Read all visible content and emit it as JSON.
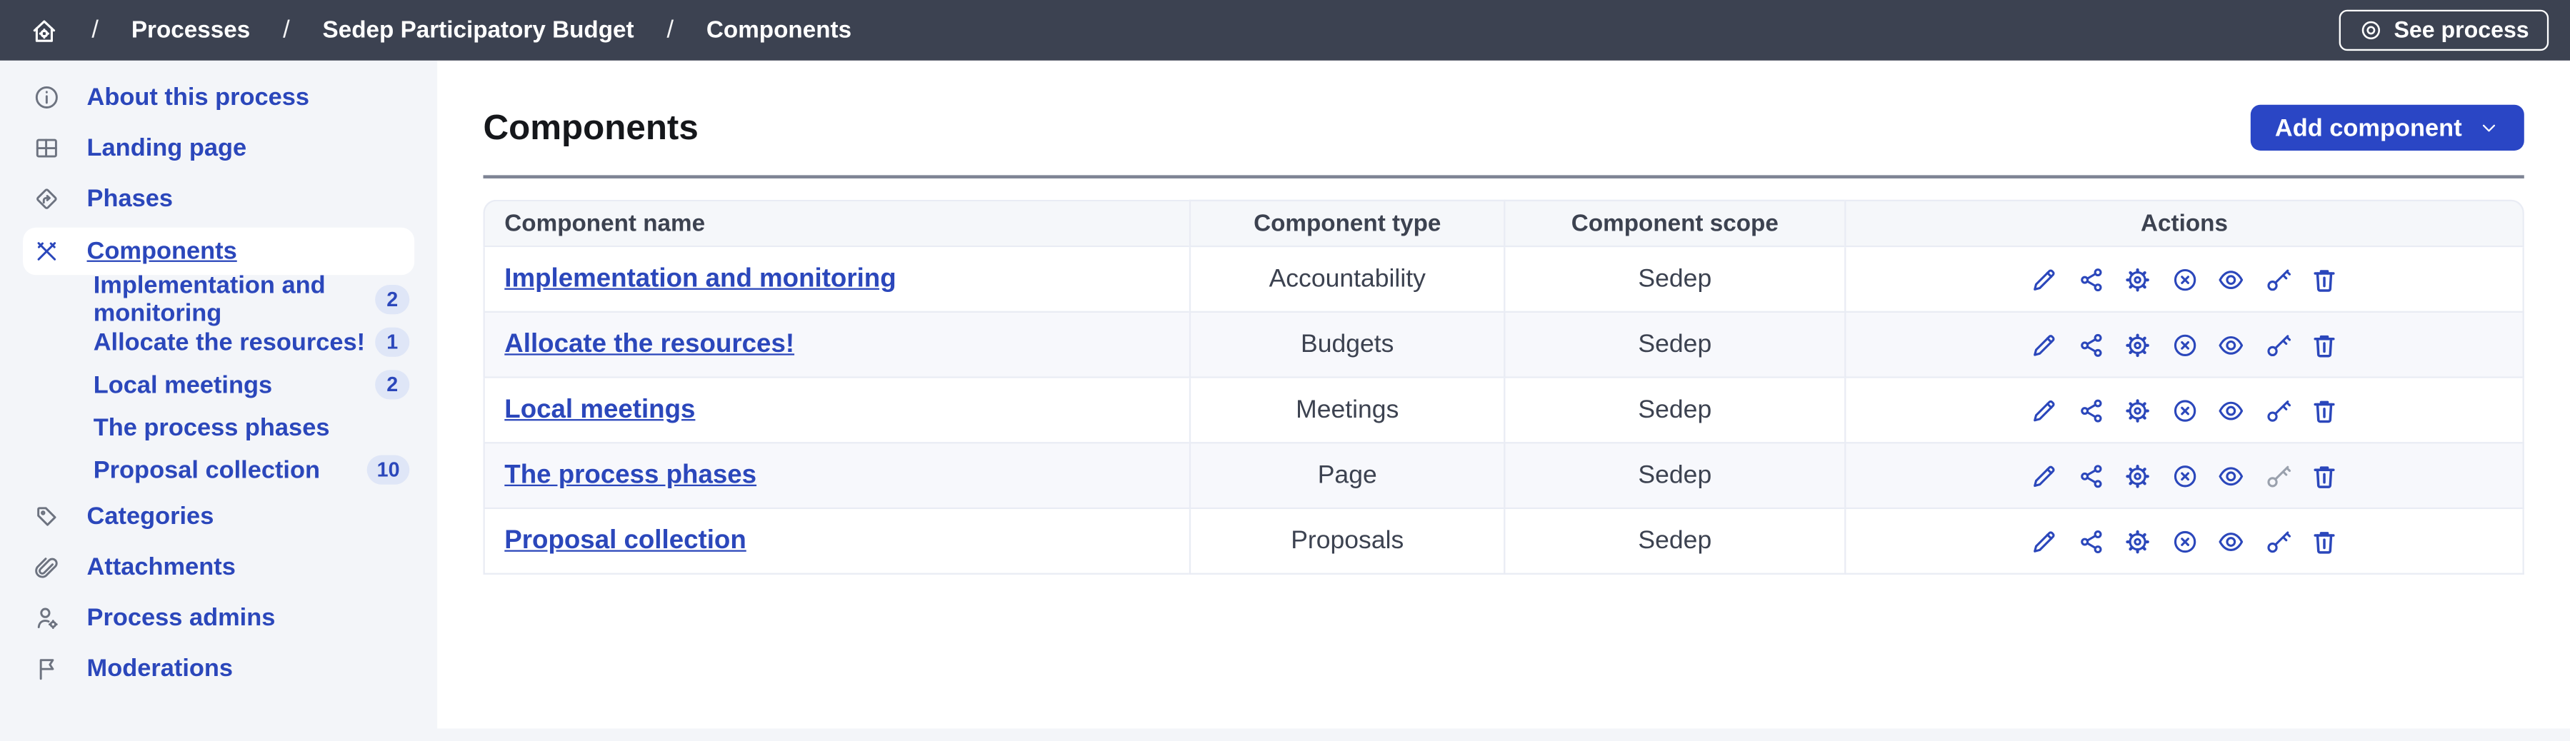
{
  "colors": {
    "topbar": "#3c4251",
    "accent": "#2a46c5",
    "link": "#2b47bb",
    "icon_gray": "#6d7380",
    "disabled": "#9aa1ad",
    "sidebar_bg": "#f3f5f9",
    "stripe": "#f7f8fc",
    "header_bg": "#f5f7fa",
    "border": "#e9ecf4",
    "rule": "#7e8494",
    "text": "#3c4250",
    "title": "#15171b",
    "badge_bg": "#dfe6f7"
  },
  "topbar": {
    "separator": "/",
    "breadcrumb": [
      {
        "label": "Processes"
      },
      {
        "label": "Sedep Participatory Budget"
      },
      {
        "label": "Components"
      }
    ],
    "see_process_label": "See process"
  },
  "sidebar": {
    "items": [
      {
        "id": "about-this-process",
        "label": "About this process",
        "icon": "info-icon"
      },
      {
        "id": "landing-page",
        "label": "Landing page",
        "icon": "layout-icon"
      },
      {
        "id": "phases",
        "label": "Phases",
        "icon": "phases-icon"
      },
      {
        "id": "components",
        "label": "Components",
        "icon": "tools-icon",
        "active": true,
        "children": [
          {
            "id": "implementation-and-monitoring",
            "label": "Implementation and monitoring",
            "badge": "2"
          },
          {
            "id": "allocate-the-resources",
            "label": "Allocate the resources!",
            "badge": "1"
          },
          {
            "id": "local-meetings",
            "label": "Local meetings",
            "badge": "2"
          },
          {
            "id": "the-process-phases",
            "label": "The process phases"
          },
          {
            "id": "proposal-collection",
            "label": "Proposal collection",
            "badge": "10"
          }
        ]
      },
      {
        "id": "categories",
        "label": "Categories",
        "icon": "tag-icon"
      },
      {
        "id": "attachments",
        "label": "Attachments",
        "icon": "paperclip-icon"
      },
      {
        "id": "process-admins",
        "label": "Process admins",
        "icon": "user-gear-icon"
      },
      {
        "id": "moderations",
        "label": "Moderations",
        "icon": "flag-icon"
      }
    ]
  },
  "main": {
    "title": "Components",
    "add_component_label": "Add component",
    "table": {
      "columns": [
        "Component name",
        "Component type",
        "Component scope",
        "Actions"
      ],
      "actions": [
        {
          "id": "edit"
        },
        {
          "id": "share"
        },
        {
          "id": "configure"
        },
        {
          "id": "unpublish"
        },
        {
          "id": "preview"
        },
        {
          "id": "permissions"
        },
        {
          "id": "delete"
        }
      ],
      "rows": [
        {
          "name": "Implementation and monitoring",
          "type": "Accountability",
          "scope": "Sedep",
          "disabled_actions": []
        },
        {
          "name": "Allocate the resources!",
          "type": "Budgets",
          "scope": "Sedep",
          "disabled_actions": []
        },
        {
          "name": "Local meetings",
          "type": "Meetings",
          "scope": "Sedep",
          "disabled_actions": []
        },
        {
          "name": "The process phases",
          "type": "Page",
          "scope": "Sedep",
          "disabled_actions": [
            "permissions"
          ]
        },
        {
          "name": "Proposal collection",
          "type": "Proposals",
          "scope": "Sedep",
          "disabled_actions": []
        }
      ]
    }
  }
}
